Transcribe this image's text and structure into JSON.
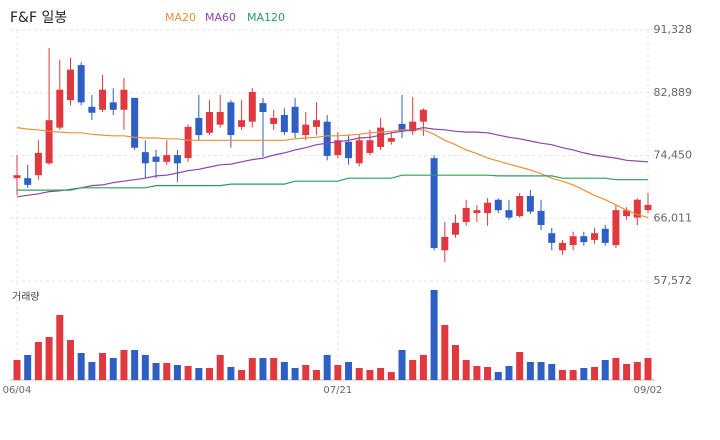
{
  "chart_data": {
    "type": "candlestick",
    "title": "F&F 일봉",
    "volume_label": "거래량",
    "categories": [
      "06/04",
      null,
      null,
      null,
      null,
      null,
      null,
      null,
      null,
      null,
      null,
      null,
      null,
      null,
      null,
      null,
      null,
      null,
      null,
      null,
      null,
      null,
      null,
      null,
      null,
      null,
      null,
      null,
      null,
      null,
      "07/21",
      null,
      null,
      null,
      null,
      null,
      null,
      null,
      null,
      null,
      null,
      null,
      null,
      null,
      null,
      null,
      null,
      null,
      null,
      null,
      null,
      null,
      null,
      null,
      null,
      null,
      null,
      null,
      null,
      "09/02"
    ],
    "open": [
      71400,
      71400,
      71800,
      73400,
      78200,
      81900,
      86600,
      81000,
      80600,
      81600,
      80600,
      82200,
      74900,
      74300,
      73600,
      74500,
      74100,
      79500,
      77500,
      78600,
      81600,
      78300,
      79000,
      81500,
      78700,
      79900,
      81000,
      77200,
      78300,
      79000,
      74500,
      76300,
      73400,
      74800,
      75600,
      76300,
      78700,
      77700,
      79000,
      74100,
      61700,
      63800,
      65500,
      66700,
      66700,
      68500,
      67100,
      66300,
      69000,
      67000,
      64000,
      61700,
      62400,
      63600,
      63100,
      64600,
      62400,
      66300,
      66100,
      67100
    ],
    "high": [
      74500,
      73200,
      76500,
      88900,
      87300,
      87600,
      87000,
      82600,
      85300,
      83500,
      84900,
      82200,
      76500,
      75200,
      76500,
      75200,
      78600,
      82600,
      81900,
      82600,
      81900,
      81900,
      83500,
      82200,
      80600,
      80800,
      82200,
      80300,
      81600,
      79900,
      77600,
      77200,
      77200,
      77900,
      79500,
      77600,
      82600,
      82300,
      80800,
      74500,
      65500,
      66500,
      68500,
      67800,
      68700,
      68700,
      68500,
      69400,
      69800,
      68500,
      64700,
      63100,
      64200,
      64200,
      64700,
      65100,
      67800,
      67500,
      68700,
      69400
    ],
    "low": [
      69100,
      70100,
      71200,
      73200,
      77900,
      81200,
      81200,
      79200,
      80300,
      79900,
      77900,
      75200,
      71400,
      71400,
      73200,
      70900,
      73600,
      76500,
      77200,
      78200,
      75500,
      77900,
      78200,
      74300,
      77900,
      77200,
      76800,
      76500,
      77200,
      73800,
      74100,
      73200,
      73000,
      74500,
      75200,
      75900,
      76800,
      77200,
      77100,
      61700,
      60100,
      63400,
      65000,
      65500,
      65000,
      66700,
      65800,
      66100,
      66600,
      64400,
      61700,
      61100,
      61700,
      62300,
      62600,
      62300,
      62000,
      65800,
      65100,
      66700
    ],
    "close": [
      71800,
      70500,
      74800,
      79200,
      83300,
      86000,
      81600,
      80200,
      83300,
      80600,
      83300,
      75500,
      73400,
      73600,
      74500,
      73400,
      78300,
      77200,
      80300,
      80300,
      77200,
      79200,
      83000,
      80300,
      79500,
      77600,
      77500,
      78600,
      79200,
      74400,
      76500,
      74100,
      76500,
      76500,
      78200,
      76800,
      77700,
      79000,
      80600,
      62000,
      63500,
      65400,
      67400,
      67100,
      68100,
      67100,
      66100,
      69000,
      66900,
      65100,
      62700,
      62700,
      63600,
      62800,
      64000,
      62700,
      67100,
      67100,
      68500,
      67800
    ],
    "volume": [
      20,
      25,
      38,
      43,
      65,
      40,
      27,
      18,
      27,
      22,
      30,
      30,
      25,
      17,
      17,
      15,
      14,
      12,
      12,
      25,
      13,
      10,
      22,
      22,
      22,
      18,
      12,
      15,
      10,
      25,
      15,
      18,
      12,
      10,
      12,
      8,
      30,
      20,
      25,
      90,
      55,
      35,
      20,
      14,
      13,
      8,
      14,
      28,
      18,
      18,
      16,
      10,
      10,
      12,
      13,
      20,
      22,
      16,
      18,
      22
    ],
    "up_color": "#e0383e",
    "down_color": "#2f5ec4",
    "series": [
      {
        "name": "MA20",
        "color": "#e8943a",
        "values": [
          78200,
          78000,
          77900,
          77700,
          77600,
          77500,
          77500,
          77300,
          77200,
          77100,
          77100,
          76900,
          76800,
          76800,
          76700,
          76700,
          76500,
          76500,
          76500,
          76500,
          76500,
          76500,
          76500,
          76500,
          76500,
          76500,
          76700,
          76800,
          76900,
          77100,
          77100,
          77200,
          77300,
          77500,
          77600,
          77700,
          77900,
          77900,
          77900,
          77300,
          76500,
          75900,
          75200,
          74700,
          74100,
          73700,
          73300,
          72900,
          72500,
          72000,
          71400,
          71000,
          70500,
          69800,
          69100,
          68500,
          67800,
          67100,
          66500,
          66100
        ]
      },
      {
        "name": "MA60",
        "color": "#8e44ad",
        "values": [
          68900,
          69100,
          69300,
          69600,
          69700,
          69900,
          70100,
          70400,
          70500,
          70800,
          71000,
          71200,
          71400,
          71700,
          71800,
          72100,
          72400,
          72600,
          72900,
          73200,
          73300,
          73600,
          73900,
          74100,
          74500,
          74800,
          75200,
          75500,
          75900,
          76100,
          76300,
          76500,
          76800,
          76900,
          77200,
          77500,
          77700,
          77900,
          78200,
          78000,
          77900,
          77700,
          77600,
          77600,
          77500,
          77200,
          76900,
          76700,
          76400,
          76100,
          75900,
          75500,
          75200,
          74800,
          74500,
          74300,
          74100,
          73800,
          73700,
          73600
        ]
      },
      {
        "name": "MA120",
        "color": "#27a35a",
        "values": [
          69800,
          69800,
          69800,
          69800,
          69800,
          69800,
          70100,
          70100,
          70100,
          70100,
          70100,
          70100,
          70100,
          70400,
          70400,
          70400,
          70400,
          70400,
          70400,
          70400,
          70600,
          70600,
          70600,
          70600,
          70600,
          70600,
          71000,
          71000,
          71000,
          71000,
          71000,
          71400,
          71400,
          71400,
          71400,
          71400,
          71800,
          71800,
          71800,
          71800,
          71800,
          71800,
          71800,
          71800,
          71800,
          71700,
          71700,
          71700,
          71700,
          71700,
          71700,
          71400,
          71400,
          71400,
          71400,
          71400,
          71200,
          71200,
          71200,
          71200
        ]
      }
    ],
    "ylim": [
      57572,
      91328
    ],
    "yticks": [
      {
        "value": 91328,
        "label": "91,328"
      },
      {
        "value": 82889,
        "label": "82,889"
      },
      {
        "value": 74450,
        "label": "74,450"
      },
      {
        "value": 66011,
        "label": "66,011"
      },
      {
        "value": 57572,
        "label": "57,572"
      }
    ],
    "grid": true
  }
}
